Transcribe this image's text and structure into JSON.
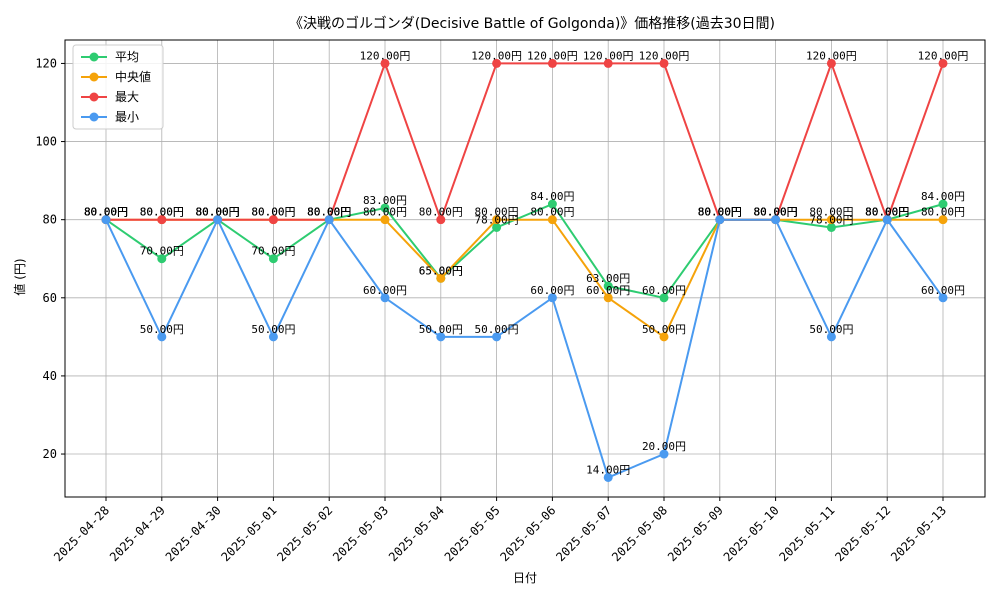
{
  "chart_data": {
    "type": "line",
    "title": "《決戦のゴルゴンダ(Decisive Battle of Golgonda)》価格推移(過去30日間)",
    "xlabel": "日付",
    "ylabel": "値 (円)",
    "ylim": [
      9,
      126
    ],
    "yticks": [
      20,
      40,
      60,
      80,
      100,
      120
    ],
    "grid": true,
    "legend_position": "top-left",
    "label_suffix": "円",
    "categories": [
      "2025-04-28",
      "2025-04-29",
      "2025-04-30",
      "2025-05-01",
      "2025-05-02",
      "2025-05-03",
      "2025-05-04",
      "2025-05-05",
      "2025-05-06",
      "2025-05-07",
      "2025-05-08",
      "2025-05-09",
      "2025-05-10",
      "2025-05-11",
      "2025-05-12",
      "2025-05-13"
    ],
    "series": [
      {
        "name": "平均",
        "color": "#2ecc71",
        "values": [
          80,
          70,
          80,
          70,
          80,
          83,
          65,
          78,
          84,
          63,
          60,
          80,
          80,
          78,
          80,
          84
        ]
      },
      {
        "name": "中央値",
        "color": "#f5a30a",
        "values": [
          80,
          80,
          80,
          80,
          80,
          80,
          65,
          80,
          80,
          60,
          50,
          80,
          80,
          80,
          80,
          80
        ]
      },
      {
        "name": "最大",
        "color": "#ef4444",
        "values": [
          80,
          80,
          80,
          80,
          80,
          120,
          80,
          120,
          120,
          120,
          120,
          80,
          80,
          120,
          80,
          120
        ]
      },
      {
        "name": "最小",
        "color": "#4a9af0",
        "values": [
          80,
          50,
          80,
          50,
          80,
          60,
          50,
          50,
          60,
          14,
          20,
          80,
          80,
          50,
          80,
          60
        ]
      }
    ]
  }
}
